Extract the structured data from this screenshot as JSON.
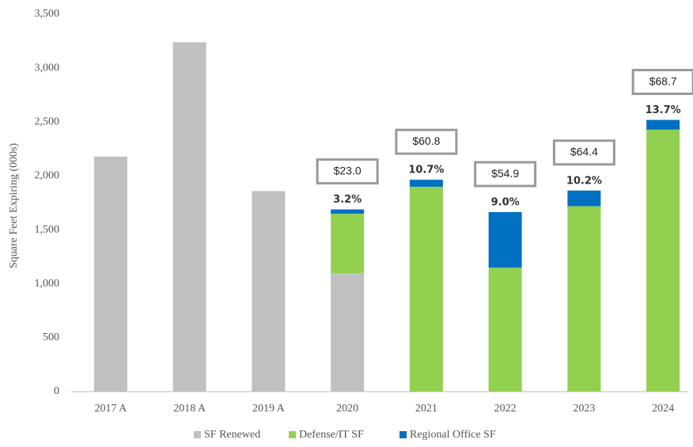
{
  "chart_data": {
    "type": "stacked_bar",
    "y_label": "Square Feet Expiring (000s)",
    "categories": [
      "2017 A",
      "2018 A",
      "2019 A",
      "2020",
      "2021",
      "2022",
      "2023",
      "2024"
    ],
    "series": [
      {
        "name": "SF Renewed",
        "color": "#c0c0c0",
        "values": [
          2180,
          3240,
          1860,
          1100,
          null,
          null,
          null,
          null
        ]
      },
      {
        "name": "Defense/IT SF",
        "color": "#92d050",
        "values": [
          null,
          null,
          null,
          550,
          1900,
          1150,
          1720,
          2430
        ]
      },
      {
        "name": "Regional Office SF",
        "color": "#0070c0",
        "values": [
          null,
          null,
          null,
          40,
          65,
          515,
          145,
          90
        ]
      }
    ],
    "annotations": [
      {
        "category": "2020",
        "box": "$23.0",
        "label": "3.2%"
      },
      {
        "category": "2021",
        "box": "$60.8",
        "label": "10.7%"
      },
      {
        "category": "2022",
        "box": "$54.9",
        "label": "9.0%"
      },
      {
        "category": "2023",
        "box": "$64.4",
        "label": "10.2%"
      },
      {
        "category": "2024",
        "box": "$68.7",
        "label": "13.7%"
      }
    ],
    "ylim": [
      0,
      3500
    ],
    "yticks": [
      0,
      500,
      {
        "value": 1000,
        "label": "1,000"
      },
      {
        "value": 1500,
        "label": "1,500"
      },
      {
        "value": 2000,
        "label": "2,000"
      },
      {
        "value": 2500,
        "label": "2,500"
      },
      {
        "value": 3000,
        "label": "3,000"
      },
      {
        "value": 3500,
        "label": "3,500"
      }
    ],
    "legend": "bottom"
  }
}
